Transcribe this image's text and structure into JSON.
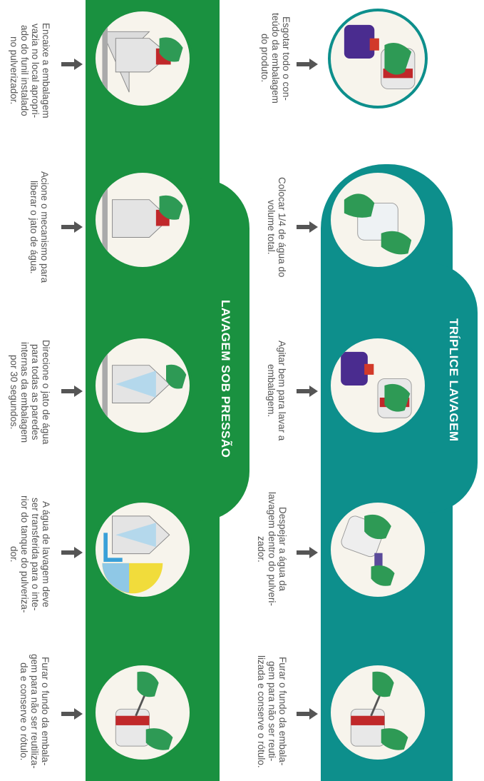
{
  "sections": {
    "triple_wash": {
      "title": "TRÍPLICE LAVAGEM",
      "steps": [
        {
          "text": "Esgotar todo o con-\nteúdo da embalagem\ndo produto.",
          "icon": "pour-out-icon"
        },
        {
          "text": "Colocar 1/4 de água do\nvolume total.",
          "icon": "add-water-icon"
        },
        {
          "text": "Agitar bem para lavar a\nembalagem.",
          "icon": "shake-bottle-icon"
        },
        {
          "text": "Despejar a água da\nlavagem dentro do pulveri-\nzador.",
          "icon": "pour-into-sprayer-icon"
        },
        {
          "text": "Furar o fundo da embala-\ngem para não ser reuti-\nlizada e conserve o rótulo.",
          "icon": "pierce-bottle-icon"
        }
      ]
    },
    "pressure_wash": {
      "title": "LAVAGEM SOB PRESSÃO",
      "steps": [
        {
          "text": "Encaixe a embalagem\nvazia no local apropri-\nado do funil instalado\nno pulverizador.",
          "icon": "funnel-fit-icon"
        },
        {
          "text": "Acione o mecanismo para\nliberar o jato de água.",
          "icon": "trigger-jet-icon"
        },
        {
          "text": "Direcione o jato de água\npara todas as paredes\ninternas da embalagem\npor 30 segundos.",
          "icon": "spray-jet-icon"
        },
        {
          "text": "A água de lavagem deve\nser transferida para o inte-\nrior do tanque do pulveriza-\ndor.",
          "icon": "transfer-tank-icon"
        },
        {
          "text": "Furar o fundo da embala-\ngem para não ser reutiliza-\nda e conserve o rótulo.",
          "icon": "pierce-bottle-icon"
        }
      ]
    }
  },
  "colors": {
    "green": "#1a9140",
    "teal": "#0d8f8c",
    "glove": "#2e9a55",
    "arrow": "#555555",
    "text": "#555555"
  }
}
